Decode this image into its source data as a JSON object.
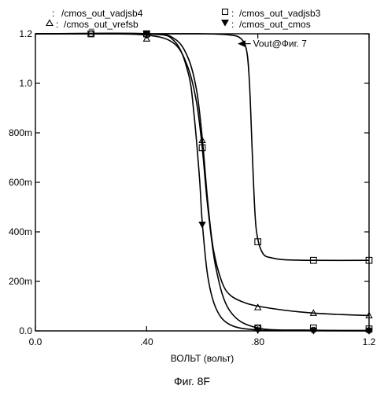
{
  "chart_data": {
    "type": "line",
    "xlabel": "ВОЛЬТ (вольт)",
    "caption": "Фиг. 8F",
    "xlim": [
      0,
      1.2
    ],
    "ylim": [
      0,
      1.2
    ],
    "x_ticks": [
      {
        "value": 0.0,
        "label": "0.0"
      },
      {
        "value": 0.4,
        "label": ".40"
      },
      {
        "value": 0.8,
        "label": ".80"
      },
      {
        "value": 1.2,
        "label": "1.2"
      }
    ],
    "y_ticks": [
      {
        "value": 0.0,
        "label": "0.0"
      },
      {
        "value": 0.2,
        "label": "200m"
      },
      {
        "value": 0.4,
        "label": "400m"
      },
      {
        "value": 0.6,
        "label": "600m"
      },
      {
        "value": 0.8,
        "label": "800m"
      },
      {
        "value": 1.0,
        "label": "1.0"
      },
      {
        "value": 1.2,
        "label": "1.2"
      }
    ],
    "annotation": {
      "text": "Vout@Фиг. 7",
      "x": 0.72,
      "y": 1.16,
      "text_x": 0.78,
      "text_y": 1.16
    },
    "series": [
      {
        "name": "/cmos_out_vadjsb4",
        "legend_prefix": ":",
        "marker": "circle",
        "x": [
          0.0,
          0.2,
          0.4,
          0.5,
          0.55,
          0.58,
          0.6,
          0.62,
          0.65,
          0.7,
          0.8,
          1.0,
          1.2
        ],
        "y": [
          1.2,
          1.2,
          1.195,
          1.16,
          1.06,
          0.92,
          0.74,
          0.5,
          0.25,
          0.08,
          0.012,
          0.003,
          0.002
        ],
        "markers": [
          {
            "x": 0.2,
            "y": 1.2
          },
          {
            "x": 0.4,
            "y": 1.195
          },
          {
            "x": 0.8,
            "y": 0.012
          },
          {
            "x": 1.0,
            "y": 0.004
          },
          {
            "x": 1.2,
            "y": 0.002
          }
        ]
      },
      {
        "name": "/cmos_out_vadjsb3",
        "legend_prefix": ":",
        "marker": "square",
        "x": [
          0.0,
          0.4,
          0.6,
          0.7,
          0.74,
          0.76,
          0.77,
          0.78,
          0.79,
          0.8,
          0.82,
          0.85,
          0.9,
          1.0,
          1.2
        ],
        "y": [
          1.2,
          1.2,
          1.2,
          1.195,
          1.18,
          1.13,
          1.0,
          0.72,
          0.47,
          0.37,
          0.31,
          0.295,
          0.287,
          0.285,
          0.285
        ],
        "markers": [
          {
            "x": 0.2,
            "y": 1.2
          },
          {
            "x": 0.4,
            "y": 1.2
          },
          {
            "x": 0.6,
            "y": 0.74
          },
          {
            "x": 0.8,
            "y": 0.36
          },
          {
            "x": 0.8,
            "y": 0.012
          },
          {
            "x": 1.0,
            "y": 0.285
          },
          {
            "x": 1.0,
            "y": 0.012
          },
          {
            "x": 1.2,
            "y": 0.285
          },
          {
            "x": 1.2,
            "y": 0.008
          }
        ]
      },
      {
        "name": "/cmos_out_vrefsb",
        "legend_prefix": ":",
        "marker": "triangle-up",
        "x": [
          0.0,
          0.4,
          0.5,
          0.55,
          0.58,
          0.6,
          0.62,
          0.64,
          0.67,
          0.7,
          0.75,
          0.8,
          0.9,
          1.0,
          1.1,
          1.2
        ],
        "y": [
          1.2,
          1.2,
          1.18,
          1.1,
          0.97,
          0.78,
          0.52,
          0.33,
          0.2,
          0.145,
          0.115,
          0.1,
          0.083,
          0.072,
          0.066,
          0.062
        ],
        "markers": [
          {
            "x": 0.4,
            "y": 1.18
          },
          {
            "x": 0.6,
            "y": 0.77
          },
          {
            "x": 0.8,
            "y": 0.095
          },
          {
            "x": 1.0,
            "y": 0.072
          },
          {
            "x": 1.2,
            "y": 0.062
          }
        ]
      },
      {
        "name": "/cmos_out_cmos",
        "legend_prefix": ":",
        "marker": "triangle-down",
        "x": [
          0.0,
          0.4,
          0.5,
          0.55,
          0.57,
          0.59,
          0.6,
          0.62,
          0.65,
          0.7,
          0.8,
          1.0,
          1.2
        ],
        "y": [
          1.2,
          1.2,
          1.17,
          1.04,
          0.88,
          0.62,
          0.44,
          0.22,
          0.09,
          0.025,
          0.004,
          0.001,
          0.0
        ],
        "markers": [
          {
            "x": 0.4,
            "y": 1.2
          },
          {
            "x": 0.6,
            "y": 0.43
          },
          {
            "x": 0.8,
            "y": 0.003
          },
          {
            "x": 1.0,
            "y": 0.001
          },
          {
            "x": 1.2,
            "y": 0.0
          }
        ]
      }
    ]
  }
}
